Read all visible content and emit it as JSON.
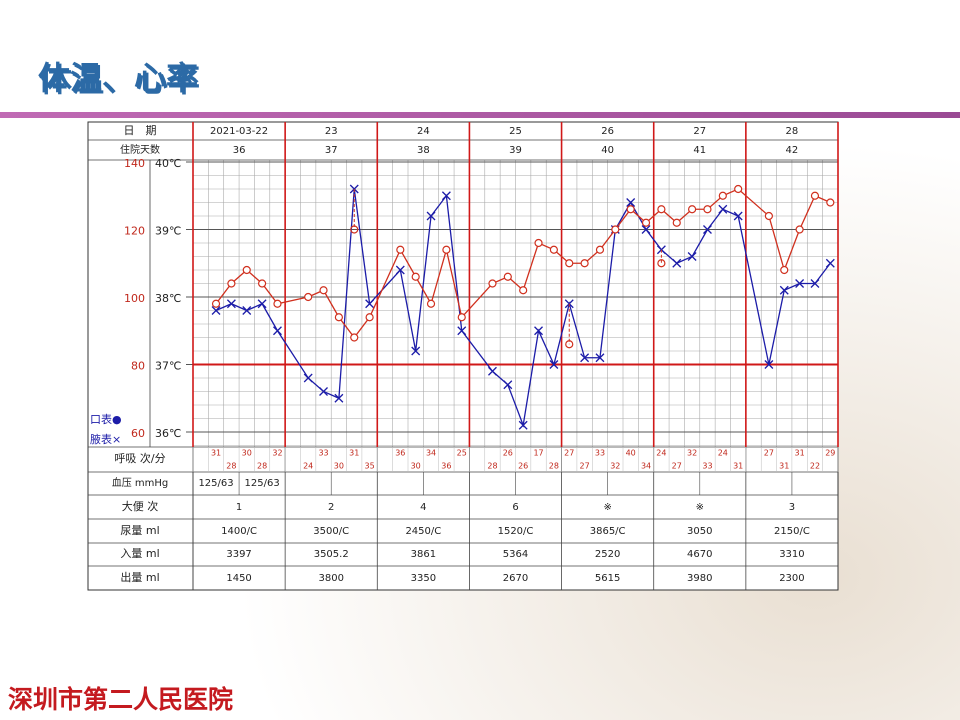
{
  "header": {
    "title": "体温、心率"
  },
  "chart_data": {
    "type": "line",
    "annotations": [
      "口表●",
      "腋表×"
    ],
    "x": [
      1,
      2,
      3,
      4,
      5,
      7,
      8,
      9,
      10,
      11,
      13,
      14,
      15,
      16,
      17,
      19,
      20,
      21,
      22,
      23,
      24,
      25,
      26,
      27,
      28,
      29,
      30,
      31,
      32,
      33,
      34,
      35,
      37,
      38,
      39,
      40,
      41
    ],
    "xlim": [
      -0.5,
      41.5
    ],
    "ylim": [
      60,
      140
    ],
    "yticks": [
      60,
      80,
      100,
      120,
      140
    ],
    "y2lim": [
      36,
      40
    ],
    "y2ticks": [
      {
        "value": 36,
        "label": "36℃"
      },
      {
        "value": 37,
        "label": "37℃"
      },
      {
        "value": 38,
        "label": "38℃"
      },
      {
        "value": 39,
        "label": "39℃"
      },
      {
        "value": 40,
        "label": "40℃"
      }
    ],
    "reference_line": 37,
    "grid": true,
    "series": [
      {
        "axis": "y2",
        "color": "#1c1ca8",
        "marker": "cross",
        "values": [
          37.8,
          37.9,
          37.8,
          37.9,
          37.5,
          36.8,
          36.6,
          36.5,
          39.6,
          37.9,
          38.4,
          37.2,
          39.2,
          39.5,
          37.5,
          36.9,
          36.7,
          36.1,
          37.5,
          37.0,
          37.9,
          37.1,
          37.1,
          39.0,
          39.4,
          39.0,
          38.7,
          38.5,
          38.6,
          39.0,
          39.3,
          39.2,
          37.0,
          38.1,
          38.2,
          38.2,
          38.5
        ]
      },
      {
        "axis": "y",
        "color": "#d0301e",
        "marker": "circle",
        "values": [
          98,
          104,
          108,
          104,
          98,
          100,
          102,
          94,
          88,
          94,
          114,
          106,
          98,
          114,
          94,
          104,
          106,
          102,
          116,
          114,
          110,
          110,
          114,
          120,
          126,
          122,
          126,
          122,
          126,
          126,
          130,
          132,
          124,
          108,
          120,
          130,
          128
        ]
      }
    ],
    "cooling": {
      "axis": "y2",
      "color": "#d0301e",
      "x": [
        10,
        24,
        30
      ],
      "values": [
        39.0,
        37.3,
        38.5
      ]
    }
  },
  "table": {
    "date_label": "日　期",
    "dates": [
      "2021-03-22",
      "23",
      "24",
      "25",
      "26",
      "27",
      "28"
    ],
    "days_label": "住院天数",
    "days": [
      36,
      37,
      38,
      39,
      40,
      41,
      42
    ],
    "respiration": {
      "label": "呼吸 次/分",
      "values": [
        31,
        28,
        30,
        28,
        32,
        24,
        33,
        30,
        31,
        35,
        36,
        30,
        34,
        36,
        25,
        28,
        26,
        26,
        17,
        28,
        27,
        27,
        33,
        32,
        40,
        34,
        24,
        27,
        32,
        33,
        24,
        31,
        27,
        31,
        31,
        22,
        29
      ]
    },
    "blood_pressure": {
      "label": "血压 mmHg",
      "values": [
        "125/63",
        "125/63"
      ]
    },
    "rows": [
      {
        "label": "大便 次",
        "values": [
          1,
          2,
          4,
          6,
          "※",
          "※",
          3
        ]
      },
      {
        "label": "尿量 ml",
        "values": [
          "1400/C",
          "3500/C",
          "2450/C",
          "1520/C",
          "3865/C",
          3050,
          "2150/C"
        ]
      },
      {
        "label": "入量 ml",
        "values": [
          3397,
          3505.2,
          3861,
          5364,
          2520,
          4670,
          3310
        ]
      },
      {
        "label": "出量 ml",
        "values": [
          1450,
          3800,
          3350,
          2670,
          5615,
          3980,
          2300
        ]
      }
    ]
  },
  "footer": {
    "hospital": "深圳市第二人民医院"
  }
}
